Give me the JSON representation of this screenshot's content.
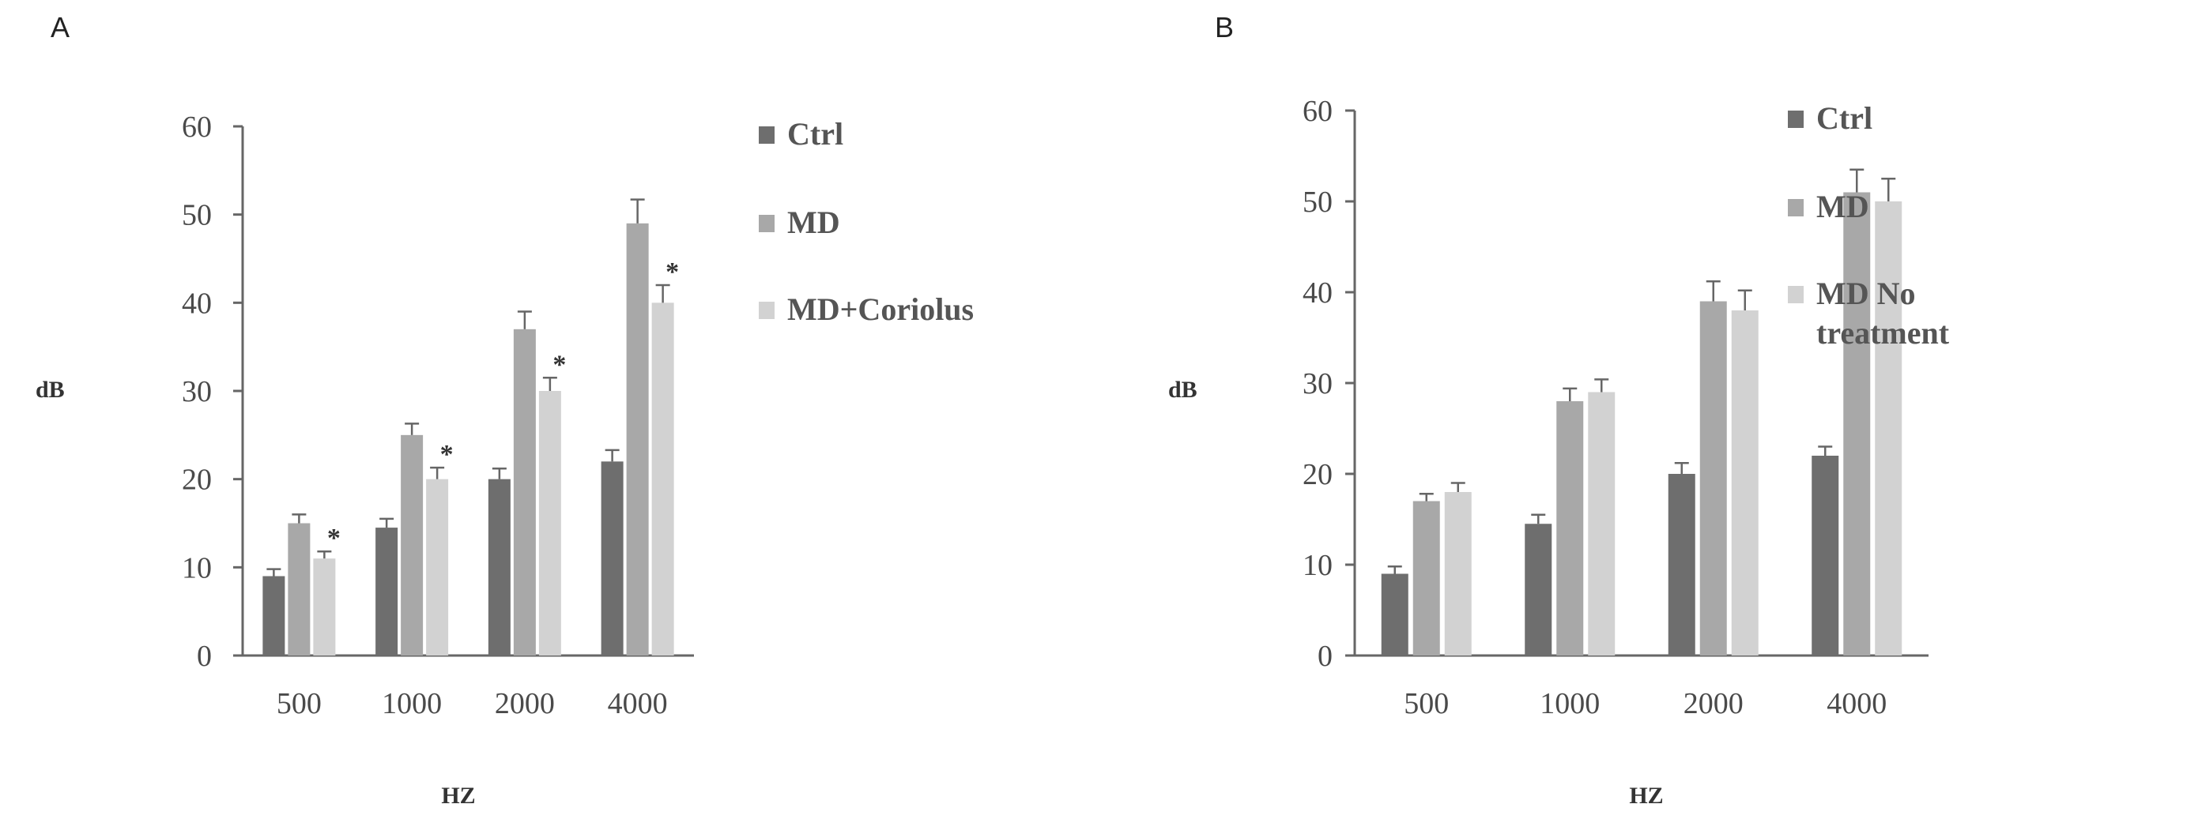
{
  "colors": {
    "ctrl": "#6e6e6e",
    "md": "#a8a8a8",
    "treat": "#d2d2d2",
    "axis": "#666666",
    "error": "#666666"
  },
  "chart_data": [
    {
      "type": "bar",
      "panel_label": "A",
      "categories": [
        "500",
        "1000",
        "2000",
        "4000"
      ],
      "xlabel": "HZ",
      "ylabel": "dB",
      "ylim": [
        0,
        60
      ],
      "yticks": [
        "0",
        "10",
        "20",
        "30",
        "40",
        "50",
        "60"
      ],
      "legend_position": "right",
      "series": [
        {
          "name": "Ctrl",
          "color_key": "ctrl",
          "values": [
            9,
            14.5,
            20,
            22
          ],
          "errors": [
            0.8,
            1,
            1.2,
            1.3
          ]
        },
        {
          "name": "MD",
          "color_key": "md",
          "values": [
            15,
            25,
            37,
            49
          ],
          "errors": [
            1,
            1.3,
            2,
            2.7
          ]
        },
        {
          "name": "MD+Coriolus",
          "color_key": "treat",
          "values": [
            11,
            20,
            30,
            40
          ],
          "errors": [
            0.8,
            1.3,
            1.5,
            2
          ]
        }
      ],
      "annotations": [
        {
          "text": "*",
          "series": 2,
          "category": 0
        },
        {
          "text": "*",
          "series": 2,
          "category": 1
        },
        {
          "text": "*",
          "series": 2,
          "category": 2
        },
        {
          "text": "*",
          "series": 2,
          "category": 3
        }
      ]
    },
    {
      "type": "bar",
      "panel_label": "B",
      "categories": [
        "500",
        "1000",
        "2000",
        "4000"
      ],
      "xlabel": "HZ",
      "ylabel": "dB",
      "ylim": [
        0,
        60
      ],
      "yticks": [
        "0",
        "10",
        "20",
        "30",
        "40",
        "50",
        "60"
      ],
      "legend_position": "right",
      "series": [
        {
          "name": "Ctrl",
          "color_key": "ctrl",
          "values": [
            9,
            14.5,
            20,
            22
          ],
          "errors": [
            0.8,
            1,
            1.2,
            1
          ]
        },
        {
          "name": "MD",
          "color_key": "md",
          "values": [
            17,
            28,
            39,
            51
          ],
          "errors": [
            0.8,
            1.4,
            2.2,
            2.5
          ]
        },
        {
          "name": "MD No treatment",
          "color_key": "treat",
          "values": [
            18,
            29,
            38,
            50
          ],
          "errors": [
            1,
            1.4,
            2.2,
            2.5
          ]
        }
      ],
      "annotations": []
    }
  ]
}
